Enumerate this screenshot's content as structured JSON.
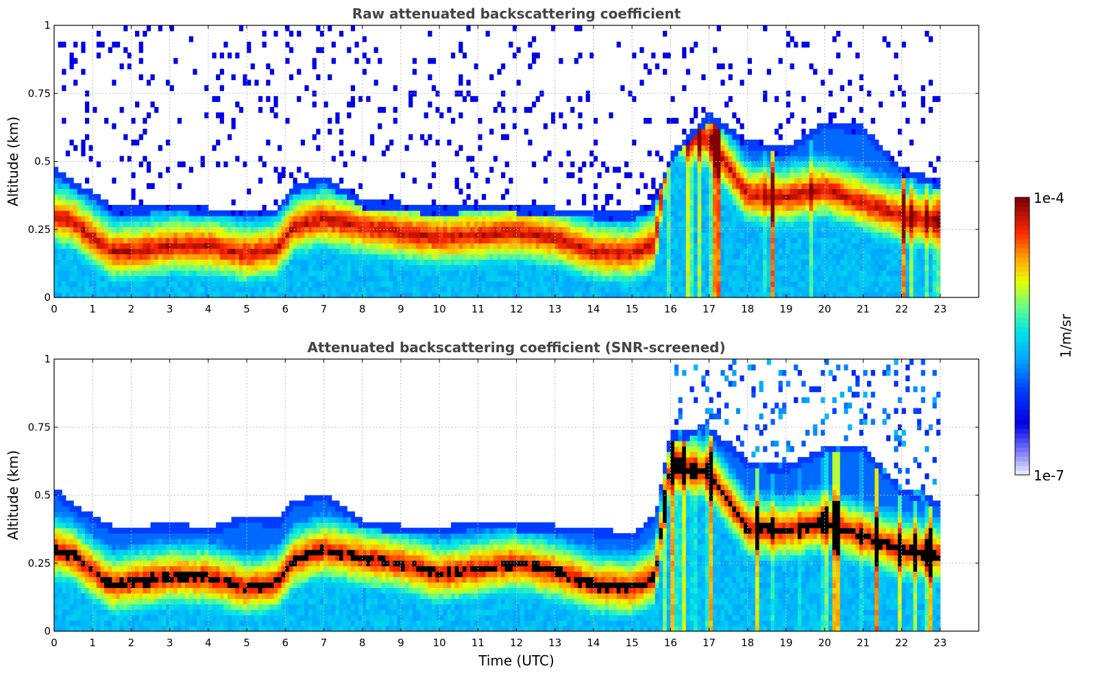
{
  "chart_data": [
    {
      "type": "heatmap",
      "title": "Raw attenuated backscattering coefficient",
      "xlabel": "",
      "ylabel": "Altitude (km)",
      "xlim": [
        0,
        24
      ],
      "ylim": [
        0,
        1
      ],
      "x_ticks": [
        "0",
        "1",
        "2",
        "3",
        "4",
        "5",
        "6",
        "7",
        "8",
        "9",
        "10",
        "11",
        "12",
        "13",
        "14",
        "15",
        "16",
        "17",
        "18",
        "19",
        "20",
        "21",
        "22",
        "23"
      ],
      "y_ticks": [
        "0",
        "0.25",
        "0.5",
        "0.75",
        "1"
      ],
      "grid": true,
      "data_end_hour": 23,
      "screened": false,
      "layer_top_km": [
        [
          0,
          0.45
        ],
        [
          0.5,
          0.4
        ],
        [
          1,
          0.36
        ],
        [
          1.5,
          0.31
        ],
        [
          2,
          0.3
        ],
        [
          3,
          0.32
        ],
        [
          4,
          0.3
        ],
        [
          5,
          0.29
        ],
        [
          5.8,
          0.3
        ],
        [
          6.2,
          0.38
        ],
        [
          7,
          0.42
        ],
        [
          8,
          0.33
        ],
        [
          9,
          0.32
        ],
        [
          10,
          0.3
        ],
        [
          11,
          0.32
        ],
        [
          12,
          0.31
        ],
        [
          13,
          0.3
        ],
        [
          14,
          0.29
        ],
        [
          15,
          0.28
        ],
        [
          15.6,
          0.33
        ],
        [
          16,
          0.5
        ],
        [
          17,
          0.65
        ],
        [
          18,
          0.55
        ],
        [
          19,
          0.52
        ],
        [
          20,
          0.62
        ],
        [
          21,
          0.6
        ],
        [
          22,
          0.45
        ],
        [
          23,
          0.4
        ]
      ],
      "layer_center_km": [
        [
          0,
          0.3
        ],
        [
          0.5,
          0.28
        ],
        [
          1,
          0.22
        ],
        [
          1.5,
          0.17
        ],
        [
          2,
          0.17
        ],
        [
          3,
          0.19
        ],
        [
          4,
          0.19
        ],
        [
          5,
          0.16
        ],
        [
          5.8,
          0.18
        ],
        [
          6.2,
          0.26
        ],
        [
          7,
          0.29
        ],
        [
          8,
          0.26
        ],
        [
          9,
          0.24
        ],
        [
          10,
          0.22
        ],
        [
          11,
          0.23
        ],
        [
          12,
          0.24
        ],
        [
          13,
          0.22
        ],
        [
          14,
          0.17
        ],
        [
          15,
          0.16
        ],
        [
          15.6,
          0.2
        ],
        [
          16,
          0.62
        ],
        [
          17,
          0.58
        ],
        [
          18,
          0.38
        ],
        [
          19,
          0.37
        ],
        [
          20,
          0.4
        ],
        [
          21,
          0.35
        ],
        [
          22,
          0.3
        ],
        [
          23,
          0.28
        ]
      ],
      "colorbar": {
        "label": "1/m/sr",
        "min_label": "1e-7",
        "max_label": "1e-4",
        "scale": "log"
      }
    },
    {
      "type": "heatmap",
      "title": "Attenuated backscattering coefficient (SNR-screened)",
      "xlabel": "Time (UTC)",
      "ylabel": "Altitude (km)",
      "xlim": [
        0,
        24
      ],
      "ylim": [
        0,
        1
      ],
      "x_ticks": [
        "0",
        "1",
        "2",
        "3",
        "4",
        "5",
        "6",
        "7",
        "8",
        "9",
        "10",
        "11",
        "12",
        "13",
        "14",
        "15",
        "16",
        "17",
        "18",
        "19",
        "20",
        "21",
        "22",
        "23"
      ],
      "y_ticks": [
        "0",
        "0.25",
        "0.5",
        "0.75",
        "1"
      ],
      "grid": true,
      "data_end_hour": 23,
      "screened": true,
      "layer_top_km": [
        [
          0,
          0.5
        ],
        [
          0.5,
          0.44
        ],
        [
          1,
          0.4
        ],
        [
          1.5,
          0.36
        ],
        [
          2,
          0.35
        ],
        [
          3,
          0.37
        ],
        [
          4,
          0.35
        ],
        [
          5,
          0.4
        ],
        [
          5.8,
          0.38
        ],
        [
          6.2,
          0.45
        ],
        [
          7,
          0.48
        ],
        [
          8,
          0.38
        ],
        [
          9,
          0.36
        ],
        [
          10,
          0.35
        ],
        [
          11,
          0.38
        ],
        [
          12,
          0.37
        ],
        [
          13,
          0.36
        ],
        [
          14,
          0.35
        ],
        [
          15,
          0.33
        ],
        [
          15.6,
          0.4
        ],
        [
          16,
          0.7
        ],
        [
          17,
          0.72
        ],
        [
          18,
          0.6
        ],
        [
          19,
          0.58
        ],
        [
          20,
          0.65
        ],
        [
          21,
          0.65
        ],
        [
          22,
          0.5
        ],
        [
          23,
          0.45
        ]
      ],
      "layer_center_km": [
        [
          0,
          0.3
        ],
        [
          0.5,
          0.28
        ],
        [
          1,
          0.22
        ],
        [
          1.5,
          0.17
        ],
        [
          2,
          0.18
        ],
        [
          3,
          0.2
        ],
        [
          4,
          0.2
        ],
        [
          5,
          0.16
        ],
        [
          5.8,
          0.18
        ],
        [
          6.2,
          0.26
        ],
        [
          7,
          0.3
        ],
        [
          8,
          0.27
        ],
        [
          9,
          0.25
        ],
        [
          10,
          0.21
        ],
        [
          11,
          0.23
        ],
        [
          12,
          0.25
        ],
        [
          13,
          0.22
        ],
        [
          14,
          0.17
        ],
        [
          15,
          0.16
        ],
        [
          15.6,
          0.2
        ],
        [
          16,
          0.62
        ],
        [
          17,
          0.58
        ],
        [
          18,
          0.38
        ],
        [
          19,
          0.37
        ],
        [
          20,
          0.4
        ],
        [
          21,
          0.35
        ],
        [
          22,
          0.3
        ],
        [
          23,
          0.28
        ]
      ],
      "colorbar": {
        "label": "1/m/sr",
        "min_label": "1e-7",
        "max_label": "1e-4",
        "scale": "log"
      }
    }
  ]
}
